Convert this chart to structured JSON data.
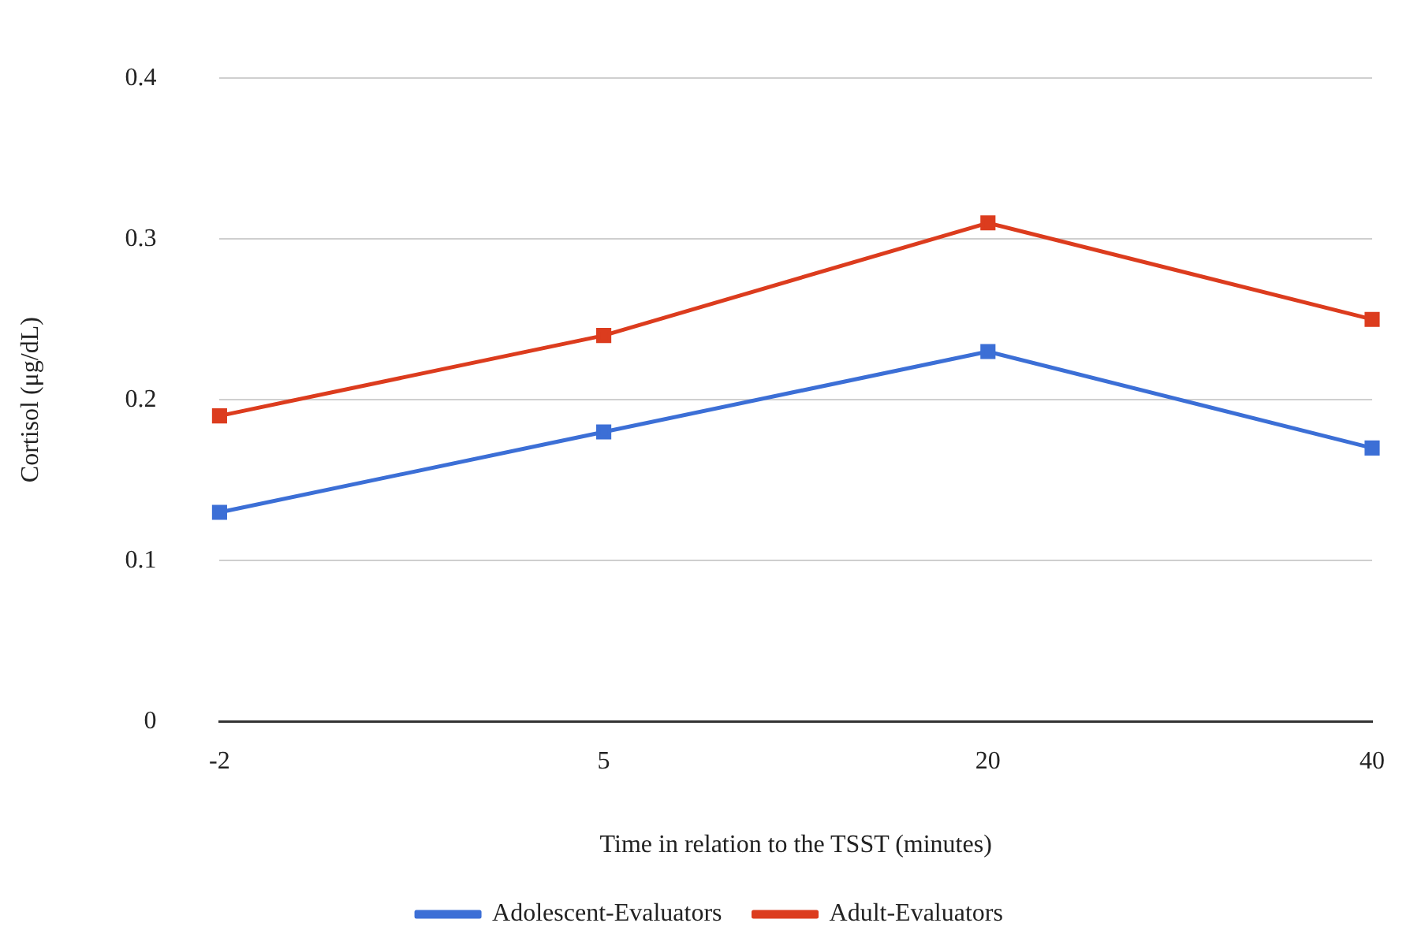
{
  "chart_data": {
    "type": "line",
    "xlabel": "Time in relation to the TSST (minutes)",
    "ylabel": "Cortisol (μg/dL)",
    "categories": [
      "-2",
      "5",
      "20",
      "40"
    ],
    "series": [
      {
        "name": "Adolescent-Evaluators",
        "color": "#3c6fd6",
        "values": [
          0.13,
          0.18,
          0.23,
          0.17
        ]
      },
      {
        "name": "Adult-Evaluators",
        "color": "#dc3c1e",
        "values": [
          0.19,
          0.24,
          0.31,
          0.25
        ]
      }
    ],
    "ylim": [
      0,
      0.4
    ],
    "yticks": [
      0,
      0.1,
      0.2,
      0.3,
      0.4
    ],
    "grid": "y",
    "legend": "bottom",
    "marker": "square",
    "line_style": "solid"
  }
}
